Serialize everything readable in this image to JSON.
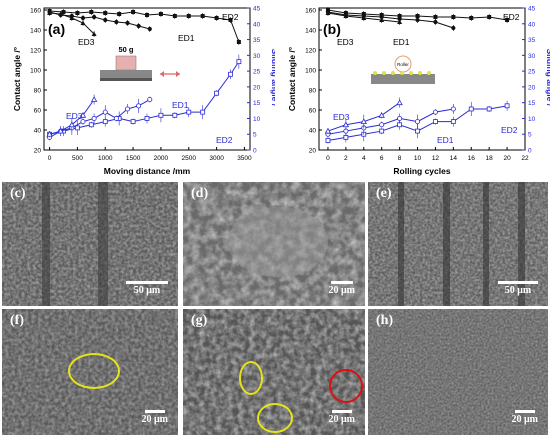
{
  "chart_data": [
    {
      "panel_label": "(a)",
      "type": "line",
      "xlabel": "Moving distance /mm",
      "ylabel": "Contact angle /°",
      "y2label": "Sliding angle /°",
      "xlim": [
        -100,
        3600
      ],
      "xticks": [
        0,
        500,
        1000,
        1500,
        2000,
        2500,
        3000,
        3500
      ],
      "ylim": [
        20,
        162
      ],
      "yticks": [
        20,
        40,
        60,
        80,
        100,
        120,
        140,
        160
      ],
      "y2lim": [
        0,
        45
      ],
      "y2ticks": [
        0,
        5,
        10,
        15,
        20,
        25,
        30,
        35,
        40,
        45
      ],
      "inset_text": "50 g",
      "contact_angle": [
        {
          "name": "ED2",
          "x": [
            0,
            250,
            500,
            750,
            1000,
            1250,
            1500,
            1750,
            2000,
            2250,
            2500,
            2750,
            3000,
            3250,
            3400
          ],
          "values": [
            159,
            158,
            157,
            158,
            157,
            156,
            158,
            155,
            156,
            154,
            154,
            154,
            152,
            150,
            128
          ]
        },
        {
          "name": "ED1",
          "x": [
            0,
            200,
            400,
            600,
            800,
            1000,
            1200,
            1400,
            1600,
            1800
          ],
          "values": [
            158,
            155,
            154,
            152,
            153,
            150,
            148,
            147,
            144,
            141
          ]
        },
        {
          "name": "ED3",
          "x": [
            0,
            200,
            400,
            600,
            800
          ],
          "values": [
            157,
            156,
            152,
            147,
            136
          ]
        }
      ],
      "sliding_angle": [
        {
          "name": "ED2",
          "x": [
            0,
            250,
            500,
            750,
            1000,
            1250,
            1500,
            1750,
            2000,
            2250,
            2500,
            2750,
            3000,
            3250,
            3400
          ],
          "values": [
            5,
            6,
            7,
            8,
            9,
            10,
            9,
            10,
            11,
            11,
            12,
            12,
            18,
            24,
            28
          ]
        },
        {
          "name": "ED1",
          "x": [
            0,
            200,
            400,
            600,
            800,
            1000,
            1200,
            1400,
            1600,
            1800
          ],
          "values": [
            4,
            6,
            7,
            9,
            10,
            12,
            10,
            13,
            14,
            16
          ]
        },
        {
          "name": "ED3",
          "x": [
            0,
            200,
            400,
            600,
            800
          ],
          "values": [
            5,
            6,
            8,
            11,
            16
          ]
        }
      ],
      "labels": {
        "ca_top": "ED2",
        "ca_left": "ED3",
        "ca_mid": "ED1",
        "sa_left": "ED3",
        "sa_mid": "ED1",
        "sa_right": "ED2"
      }
    },
    {
      "panel_label": "(b)",
      "type": "line",
      "xlabel": "Rolling cycles",
      "ylabel": "Contact angle /°",
      "y2label": "Sliding angle /°",
      "xlim": [
        -1,
        22
      ],
      "xticks": [
        0,
        2,
        4,
        6,
        8,
        10,
        12,
        14,
        16,
        18,
        20,
        22
      ],
      "ylim": [
        20,
        162
      ],
      "yticks": [
        20,
        40,
        60,
        80,
        100,
        120,
        140,
        160
      ],
      "y2lim": [
        0,
        45
      ],
      "y2ticks": [
        0,
        5,
        10,
        15,
        20,
        25,
        30,
        35,
        40,
        45
      ],
      "inset_text": "Roller",
      "contact_angle": [
        {
          "name": "ED2",
          "x": [
            0,
            2,
            4,
            6,
            8,
            10,
            12,
            14,
            16,
            18,
            20
          ],
          "values": [
            160,
            157,
            156,
            155,
            154,
            154,
            153,
            153,
            152,
            153,
            150
          ]
        },
        {
          "name": "ED1",
          "x": [
            0,
            2,
            4,
            6,
            8,
            10,
            12,
            14
          ],
          "values": [
            158,
            155,
            154,
            153,
            151,
            150,
            148,
            142
          ]
        },
        {
          "name": "ED3",
          "x": [
            0,
            2,
            4,
            6,
            8
          ],
          "values": [
            157,
            154,
            152,
            150,
            148
          ]
        }
      ],
      "sliding_angle": [
        {
          "name": "ED2",
          "x": [
            0,
            2,
            4,
            6,
            8,
            10,
            12,
            14,
            16,
            18,
            20
          ],
          "values": [
            3,
            4,
            5,
            6,
            8,
            6,
            9,
            9,
            13,
            13,
            14
          ]
        },
        {
          "name": "ED1",
          "x": [
            0,
            2,
            4,
            6,
            8,
            10,
            12,
            14
          ],
          "values": [
            5,
            6,
            7,
            8,
            10,
            9,
            12,
            13
          ]
        },
        {
          "name": "ED3",
          "x": [
            0,
            2,
            4,
            6,
            8
          ],
          "values": [
            6,
            8,
            9,
            11,
            15
          ]
        }
      ],
      "labels": {
        "ca_top": "ED2",
        "ca_left": "ED3",
        "ca_mid": "ED1",
        "sa_left": "ED3",
        "sa_mid": "ED1",
        "sa_right": "ED2"
      }
    }
  ],
  "sem_panels": [
    {
      "label": "(c)",
      "scale": "50 μm"
    },
    {
      "label": "(d)",
      "scale": "20 μm"
    },
    {
      "label": "(e)",
      "scale": "50 μm"
    },
    {
      "label": "(f)",
      "scale": "20 μm"
    },
    {
      "label": "(g)",
      "scale": "20 μm"
    },
    {
      "label": "(h)",
      "scale": "20 μm"
    }
  ],
  "colors": {
    "contact_angle": "#111111",
    "sliding_angle": "#2a2ad6",
    "marker_highlight_yellow": "#e6e21b",
    "marker_highlight_red": "#d11111"
  }
}
